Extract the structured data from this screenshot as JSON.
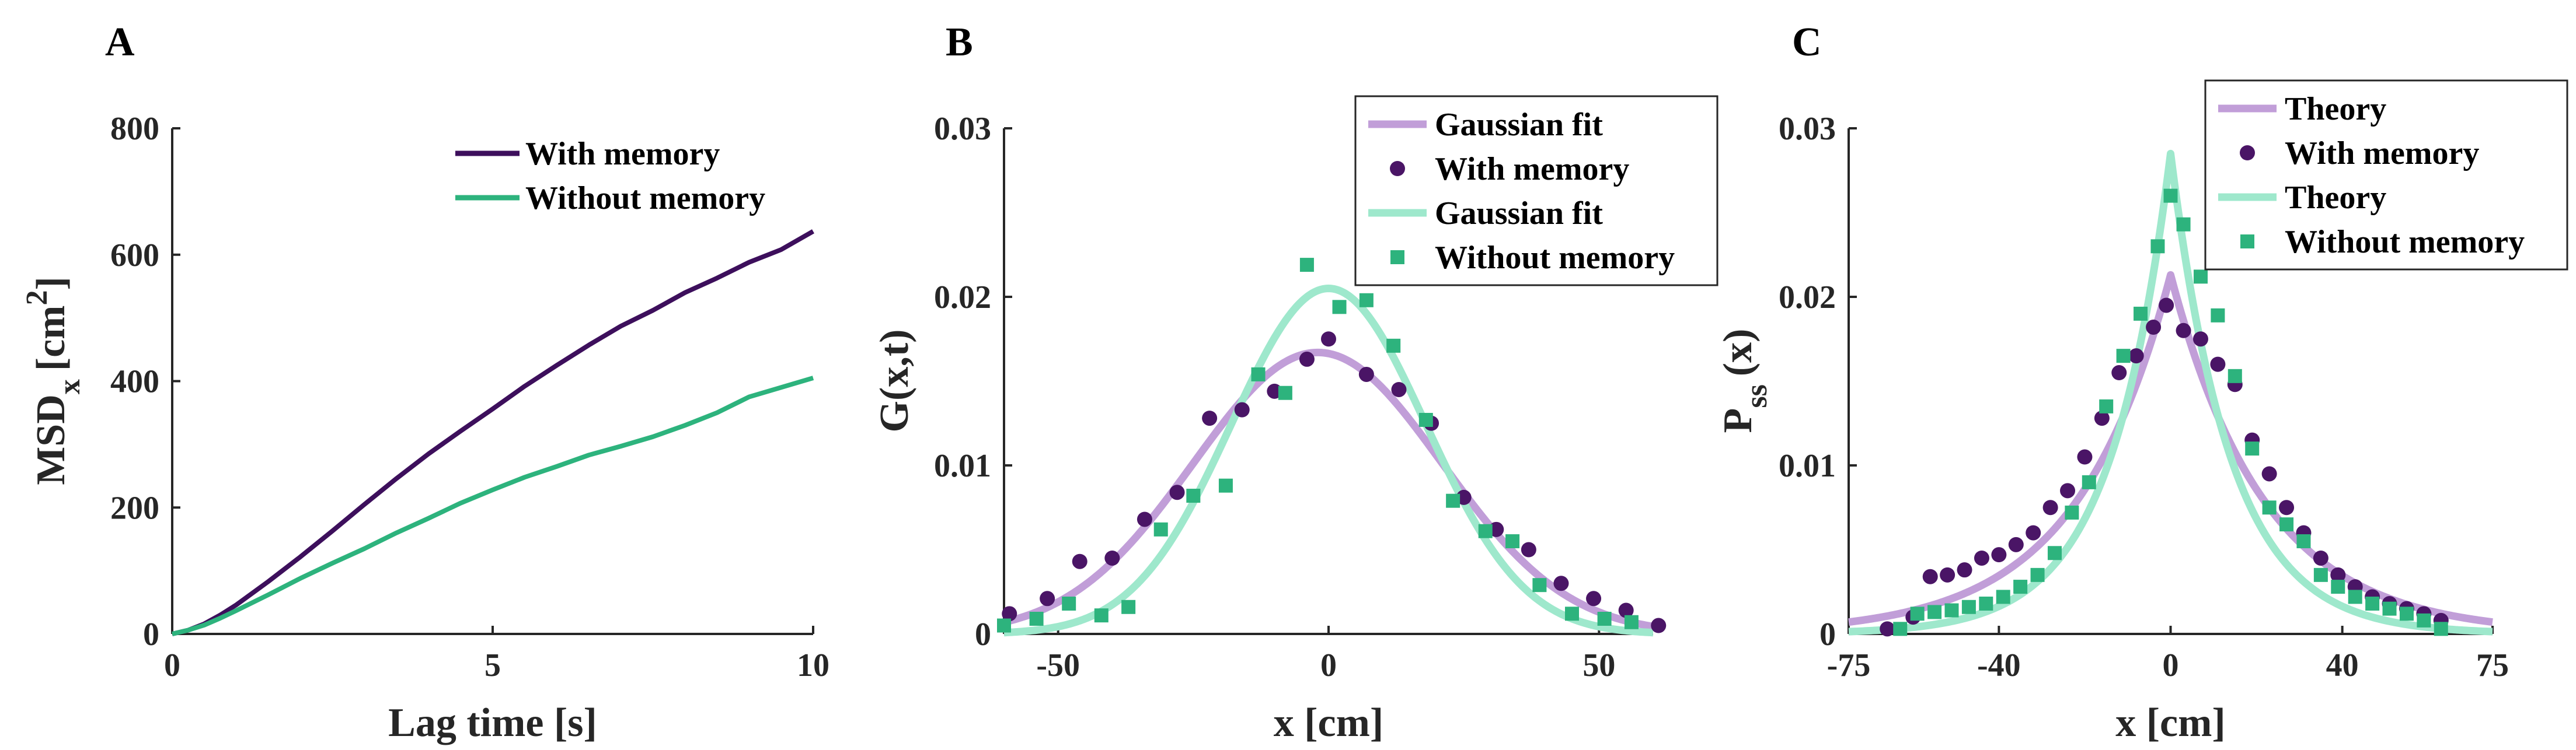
{
  "colors": {
    "memory_dark": "#3d0f5c",
    "nomemory_dark": "#2db37d",
    "memory_fit": "#c19ed8",
    "nomemory_fit": "#9ee8cc",
    "memory_marker": "#4a1566",
    "nomemory_marker": "#2db37d",
    "axis": "#262626"
  },
  "chart_data": [
    {
      "panel_label": "A",
      "type": "line",
      "xlabel": "Lag time [s]",
      "ylabel_main": "MSD",
      "ylabel_sub": "x",
      "ylabel_tail": "[cm",
      "ylabel_sup": "2",
      "ylabel_close": "]",
      "xlim": [
        0,
        10
      ],
      "ylim": [
        0,
        800
      ],
      "xticks": [
        0,
        5,
        10
      ],
      "yticks": [
        0,
        200,
        400,
        600,
        800
      ],
      "legend_position": "top-right",
      "series": [
        {
          "name": "With memory",
          "color_key": "memory_dark",
          "x": [
            0,
            0.25,
            0.5,
            0.75,
            1,
            1.5,
            2,
            2.5,
            3,
            3.5,
            4,
            4.5,
            5,
            5.5,
            6,
            6.5,
            7,
            7.5,
            8,
            8.5,
            9,
            9.5,
            10
          ],
          "y": [
            0,
            6,
            16,
            30,
            46,
            83,
            122,
            163,
            205,
            246,
            285,
            321,
            356,
            392,
            425,
            457,
            487,
            512,
            540,
            563,
            588,
            608,
            637
          ]
        },
        {
          "name": "Without memory",
          "color_key": "nomemory_dark",
          "x": [
            0,
            0.25,
            0.5,
            0.75,
            1,
            1.5,
            2,
            2.5,
            3,
            3.5,
            4,
            4.5,
            5,
            5.5,
            6,
            6.5,
            7,
            7.5,
            8,
            8.5,
            9,
            9.5,
            10
          ],
          "y": [
            0,
            6,
            14,
            25,
            37,
            62,
            88,
            112,
            135,
            160,
            183,
            207,
            228,
            248,
            265,
            283,
            297,
            312,
            330,
            350,
            375,
            390,
            405
          ]
        }
      ]
    },
    {
      "panel_label": "B",
      "type": "scatter",
      "xlabel": "x [cm]",
      "ylabel": "G(x,t)",
      "xlim": [
        -60,
        60
      ],
      "ylim": [
        0,
        0.03
      ],
      "xticks": [
        -50,
        0,
        50
      ],
      "yticks": [
        0,
        0.01,
        0.02,
        0.03
      ],
      "ytick_labels": [
        "0",
        "0.01",
        "0.02",
        "0.03"
      ],
      "legend_position": "top-right",
      "fits": [
        {
          "name": "Gaussian fit",
          "color_key": "memory_fit",
          "kind": "gauss",
          "amp": 0.0167,
          "mu": -2,
          "sigma": 23
        },
        {
          "name": "Gaussian fit",
          "color_key": "nomemory_fit",
          "kind": "gauss",
          "amp": 0.0205,
          "mu": 0,
          "sigma": 18
        }
      ],
      "series": [
        {
          "name": "With memory",
          "marker": "circle",
          "color_key": "memory_marker",
          "x": [
            -59,
            -52,
            -46,
            -40,
            -34,
            -28,
            -22,
            -16,
            -10,
            -4,
            0,
            7,
            13,
            19,
            25,
            31,
            37,
            43,
            49,
            55,
            61
          ],
          "y": [
            0.0012,
            0.0021,
            0.0043,
            0.0045,
            0.0068,
            0.0084,
            0.0128,
            0.0133,
            0.0144,
            0.0163,
            0.0175,
            0.0154,
            0.0145,
            0.0125,
            0.0081,
            0.0062,
            0.005,
            0.003,
            0.0021,
            0.0014,
            0.0005
          ]
        },
        {
          "name": "Without memory",
          "marker": "square",
          "color_key": "nomemory_marker",
          "x": [
            -60,
            -54,
            -48,
            -42,
            -37,
            -31,
            -25,
            -19,
            -13,
            -8,
            -4,
            2,
            7,
            12,
            18,
            23,
            29,
            34,
            39,
            45,
            51,
            56
          ],
          "y": [
            0.0005,
            0.0009,
            0.0018,
            0.0011,
            0.0016,
            0.0062,
            0.0082,
            0.0088,
            0.0154,
            0.0143,
            0.0219,
            0.0194,
            0.0198,
            0.0171,
            0.0127,
            0.0079,
            0.0061,
            0.0055,
            0.0029,
            0.0012,
            0.0009,
            0.0007
          ]
        }
      ]
    },
    {
      "panel_label": "C",
      "type": "scatter",
      "xlabel": "x [cm]",
      "ylabel_main": "P",
      "ylabel_sub": "ss",
      "ylabel_tail": "(x)",
      "xlim": [
        -75,
        75
      ],
      "ylim": [
        0,
        0.03
      ],
      "xticks": [
        -75,
        -40,
        0,
        40,
        75
      ],
      "yticks": [
        0,
        0.01,
        0.02,
        0.03
      ],
      "ytick_labels": [
        "0",
        "0.01",
        "0.02",
        "0.03"
      ],
      "legend_position": "top-right",
      "fits": [
        {
          "name": "Theory",
          "color_key": "memory_fit",
          "kind": "laplace",
          "amp": 0.0213,
          "mu": 0,
          "b": 22
        },
        {
          "name": "Theory",
          "color_key": "nomemory_fit",
          "kind": "laplace",
          "amp": 0.0285,
          "mu": 0,
          "b": 14
        }
      ],
      "series": [
        {
          "name": "With memory",
          "marker": "circle",
          "color_key": "memory_marker",
          "x": [
            -66,
            -60,
            -56,
            -52,
            -48,
            -44,
            -40,
            -36,
            -32,
            -28,
            -24,
            -20,
            -16,
            -12,
            -8,
            -4,
            -1,
            3,
            7,
            11,
            15,
            19,
            23,
            27,
            31,
            35,
            39,
            43,
            47,
            51,
            55,
            59,
            63
          ],
          "y": [
            0.0003,
            0.001,
            0.0034,
            0.0035,
            0.0038,
            0.0045,
            0.0047,
            0.0053,
            0.006,
            0.0075,
            0.0085,
            0.0105,
            0.0128,
            0.0155,
            0.0165,
            0.0182,
            0.0195,
            0.018,
            0.0175,
            0.016,
            0.0148,
            0.0115,
            0.0095,
            0.0075,
            0.006,
            0.0045,
            0.0035,
            0.0028,
            0.0022,
            0.0018,
            0.0015,
            0.0012,
            0.0008
          ]
        },
        {
          "name": "Without memory",
          "marker": "square",
          "color_key": "nomemory_marker",
          "x": [
            -63,
            -59,
            -55,
            -51,
            -47,
            -43,
            -39,
            -35,
            -31,
            -27,
            -23,
            -19,
            -15,
            -11,
            -7,
            -3,
            0,
            3,
            7,
            11,
            15,
            19,
            23,
            27,
            31,
            35,
            39,
            43,
            47,
            51,
            55,
            59,
            63
          ],
          "y": [
            0.0003,
            0.0012,
            0.0013,
            0.0014,
            0.0016,
            0.0018,
            0.0022,
            0.0028,
            0.0035,
            0.0048,
            0.0072,
            0.009,
            0.0135,
            0.0165,
            0.019,
            0.023,
            0.026,
            0.0243,
            0.0212,
            0.0189,
            0.0153,
            0.011,
            0.0075,
            0.0065,
            0.0055,
            0.0035,
            0.0028,
            0.0022,
            0.0018,
            0.0015,
            0.0012,
            0.0008,
            0.0003
          ]
        }
      ]
    }
  ]
}
